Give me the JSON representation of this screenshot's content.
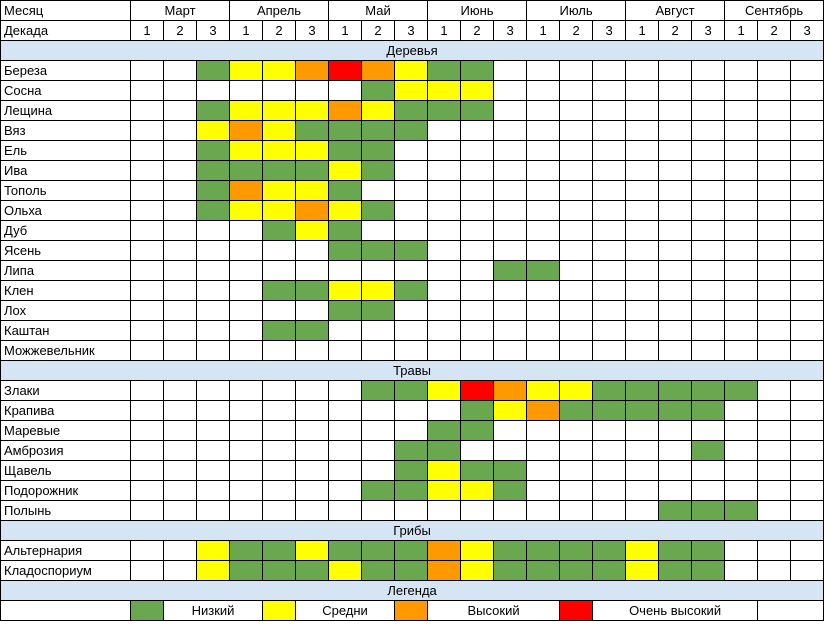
{
  "colors": {
    "Н": "#6aa84f",
    "С": "#ffff00",
    "В": "#ff9900",
    "ОВ": "#ff0000",
    "section_background": "#d6e5f4"
  },
  "header": {
    "month_label": "Месяц",
    "decade_label": "Декада",
    "months": [
      "Март",
      "Апрель",
      "Май",
      "Июнь",
      "Июль",
      "Август",
      "Сентябрь"
    ],
    "decades": [
      "1",
      "2",
      "3"
    ]
  },
  "sections": [
    {
      "title": "Деревья",
      "rows": [
        {
          "name": "Береза",
          "levels": [
            "",
            "",
            "Н",
            "С",
            "С",
            "В",
            "ОВ",
            "В",
            "С",
            "Н",
            "Н",
            "",
            "",
            "",
            "",
            "",
            "",
            "",
            "",
            "",
            ""
          ]
        },
        {
          "name": "Сосна",
          "levels": [
            "",
            "",
            "",
            "",
            "",
            "",
            "",
            "Н",
            "С",
            "С",
            "С",
            "",
            "",
            "",
            "",
            "",
            "",
            "",
            "",
            "",
            ""
          ]
        },
        {
          "name": "Лещина",
          "levels": [
            "",
            "",
            "Н",
            "С",
            "С",
            "С",
            "В",
            "С",
            "Н",
            "Н",
            "Н",
            "",
            "",
            "",
            "",
            "",
            "",
            "",
            "",
            "",
            ""
          ]
        },
        {
          "name": "Вяз",
          "levels": [
            "",
            "",
            "С",
            "В",
            "С",
            "Н",
            "Н",
            "Н",
            "Н",
            "",
            "",
            "",
            "",
            "",
            "",
            "",
            "",
            "",
            "",
            "",
            ""
          ]
        },
        {
          "name": "Ель",
          "levels": [
            "",
            "",
            "Н",
            "С",
            "С",
            "С",
            "Н",
            "Н",
            "",
            "",
            "",
            "",
            "",
            "",
            "",
            "",
            "",
            "",
            "",
            "",
            ""
          ]
        },
        {
          "name": "Ива",
          "levels": [
            "",
            "",
            "Н",
            "Н",
            "Н",
            "Н",
            "С",
            "Н",
            "",
            "",
            "",
            "",
            "",
            "",
            "",
            "",
            "",
            "",
            "",
            "",
            ""
          ]
        },
        {
          "name": "Тополь",
          "levels": [
            "",
            "",
            "Н",
            "В",
            "С",
            "С",
            "Н",
            "",
            "",
            "",
            "",
            "",
            "",
            "",
            "",
            "",
            "",
            "",
            "",
            "",
            ""
          ]
        },
        {
          "name": "Ольха",
          "levels": [
            "",
            "",
            "Н",
            "С",
            "С",
            "В",
            "С",
            "Н",
            "",
            "",
            "",
            "",
            "",
            "",
            "",
            "",
            "",
            "",
            "",
            "",
            ""
          ]
        },
        {
          "name": "Дуб",
          "levels": [
            "",
            "",
            "",
            "",
            "Н",
            "С",
            "Н",
            "",
            "",
            "",
            "",
            "",
            "",
            "",
            "",
            "",
            "",
            "",
            "",
            "",
            ""
          ]
        },
        {
          "name": "Ясень",
          "levels": [
            "",
            "",
            "",
            "",
            "",
            "",
            "Н",
            "Н",
            "Н",
            "",
            "",
            "",
            "",
            "",
            "",
            "",
            "",
            "",
            "",
            "",
            ""
          ]
        },
        {
          "name": "Липа",
          "levels": [
            "",
            "",
            "",
            "",
            "",
            "",
            "",
            "",
            "",
            "",
            "",
            "Н",
            "Н",
            "",
            "",
            "",
            "",
            "",
            "",
            "",
            ""
          ]
        },
        {
          "name": "Клен",
          "levels": [
            "",
            "",
            "",
            "",
            "Н",
            "Н",
            "С",
            "С",
            "Н",
            "",
            "",
            "",
            "",
            "",
            "",
            "",
            "",
            "",
            "",
            "",
            ""
          ]
        },
        {
          "name": "Лох",
          "levels": [
            "",
            "",
            "",
            "",
            "",
            "",
            "Н",
            "Н",
            "",
            "",
            "",
            "",
            "",
            "",
            "",
            "",
            "",
            "",
            "",
            "",
            ""
          ]
        },
        {
          "name": "Каштан",
          "levels": [
            "",
            "",
            "",
            "",
            "Н",
            "Н",
            "",
            "",
            "",
            "",
            "",
            "",
            "",
            "",
            "",
            "",
            "",
            "",
            "",
            "",
            ""
          ]
        },
        {
          "name": "Можжевельник",
          "levels": [
            "",
            "",
            "",
            "",
            "",
            "",
            "",
            "",
            "",
            "",
            "",
            "",
            "",
            "",
            "",
            "",
            "",
            "",
            "",
            "",
            ""
          ]
        }
      ]
    },
    {
      "title": "Травы",
      "rows": [
        {
          "name": "Злаки",
          "levels": [
            "",
            "",
            "",
            "",
            "",
            "",
            "",
            "Н",
            "Н",
            "С",
            "ОВ",
            "В",
            "С",
            "С",
            "Н",
            "Н",
            "Н",
            "Н",
            "Н",
            "",
            ""
          ]
        },
        {
          "name": "Крапива",
          "levels": [
            "",
            "",
            "",
            "",
            "",
            "",
            "",
            "",
            "",
            "",
            "Н",
            "С",
            "В",
            "Н",
            "Н",
            "Н",
            "Н",
            "Н",
            "",
            "",
            ""
          ]
        },
        {
          "name": "Маревые",
          "levels": [
            "",
            "",
            "",
            "",
            "",
            "",
            "",
            "",
            "",
            "Н",
            "Н",
            "",
            "",
            "",
            "",
            "",
            "",
            "",
            "",
            "",
            ""
          ]
        },
        {
          "name": "Амброзия",
          "levels": [
            "",
            "",
            "",
            "",
            "",
            "",
            "",
            "",
            "Н",
            "Н",
            "",
            "",
            "",
            "",
            "",
            "",
            "",
            "Н",
            "",
            "",
            ""
          ]
        },
        {
          "name": "Щавель",
          "levels": [
            "",
            "",
            "",
            "",
            "",
            "",
            "",
            "",
            "Н",
            "С",
            "Н",
            "Н",
            "",
            "",
            "",
            "",
            "",
            "",
            "",
            "",
            ""
          ]
        },
        {
          "name": "Подорожник",
          "levels": [
            "",
            "",
            "",
            "",
            "",
            "",
            "",
            "Н",
            "Н",
            "С",
            "С",
            "Н",
            "",
            "",
            "",
            "",
            "",
            "",
            "",
            "",
            ""
          ]
        },
        {
          "name": "Полынь",
          "levels": [
            "",
            "",
            "",
            "",
            "",
            "",
            "",
            "",
            "",
            "",
            "",
            "",
            "",
            "",
            "",
            "",
            "Н",
            "Н",
            "Н",
            "",
            ""
          ]
        }
      ]
    },
    {
      "title": "Грибы",
      "rows": [
        {
          "name": "Альтернария",
          "levels": [
            "",
            "",
            "С",
            "Н",
            "Н",
            "С",
            "Н",
            "Н",
            "Н",
            "В",
            "С",
            "Н",
            "Н",
            "Н",
            "Н",
            "С",
            "Н",
            "Н",
            "",
            "",
            ""
          ]
        },
        {
          "name": "Кладоспориум",
          "levels": [
            "",
            "",
            "С",
            "Н",
            "Н",
            "Н",
            "С",
            "Н",
            "Н",
            "В",
            "С",
            "Н",
            "Н",
            "Н",
            "Н",
            "С",
            "Н",
            "Н",
            "",
            "",
            ""
          ]
        }
      ]
    }
  ],
  "legend": {
    "title": "Легенда",
    "items": [
      {
        "level": "Н",
        "label": "Низкий"
      },
      {
        "level": "С",
        "label": "Средни"
      },
      {
        "level": "В",
        "label": "Высокий"
      },
      {
        "level": "ОВ",
        "label": "Очень высокий"
      }
    ]
  }
}
